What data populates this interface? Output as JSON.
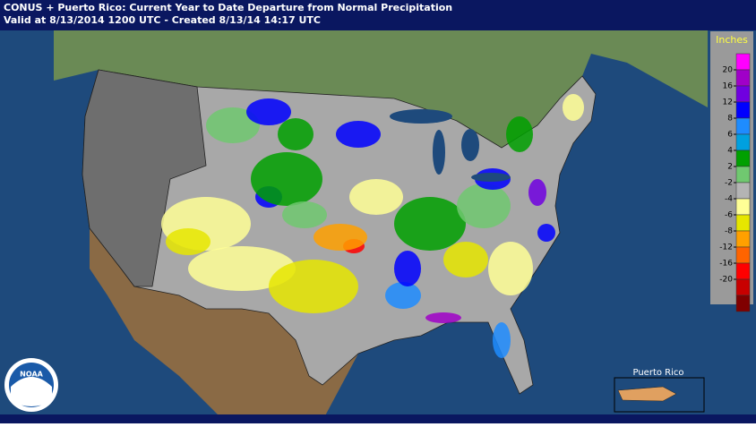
{
  "header": {
    "title": "CONUS + Puerto Rico: Current Year to Date Departure from Normal Precipitation",
    "subtitle": "Valid at 8/13/2014 1200 UTC - Created 8/13/14 14:17 UTC"
  },
  "legend": {
    "title": "Inches",
    "colors": [
      "#ff00ff",
      "#a000c8",
      "#7000e0",
      "#0000ff",
      "#1e8cff",
      "#00a0e0",
      "#00a000",
      "#70c870",
      "#b4b4b4",
      "#ffff96",
      "#e6e600",
      "#ffa000",
      "#ff6400",
      "#ff0000",
      "#c80000",
      "#800000"
    ],
    "ticks": [
      20,
      16,
      12,
      8,
      6,
      4,
      2,
      -2,
      -4,
      -6,
      -8,
      -12,
      -16,
      -20
    ]
  },
  "inset": {
    "label": "Puerto Rico"
  },
  "logo": {
    "label": "NOAA"
  }
}
